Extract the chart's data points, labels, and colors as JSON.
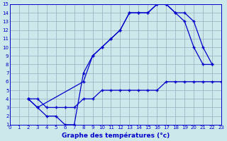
{
  "xlabel": "Graphe des températures (°c)",
  "bg_color": "#cce8ea",
  "line_color": "#0000cc",
  "grid_color": "#99aabb",
  "xlim": [
    0,
    23
  ],
  "ylim": [
    1,
    15
  ],
  "xticks": [
    0,
    1,
    2,
    3,
    4,
    5,
    6,
    7,
    8,
    9,
    10,
    11,
    12,
    13,
    14,
    15,
    16,
    17,
    18,
    19,
    20,
    21,
    22,
    23
  ],
  "yticks": [
    1,
    2,
    3,
    4,
    5,
    6,
    7,
    8,
    9,
    10,
    11,
    12,
    13,
    14,
    15
  ],
  "line1_x": [
    2,
    3,
    8,
    9,
    10,
    11,
    12,
    13,
    14,
    15,
    16,
    17,
    18,
    19,
    20,
    21,
    22
  ],
  "line1_y": [
    4,
    3,
    6,
    9,
    10,
    11,
    12,
    14,
    14,
    14,
    15,
    15,
    14,
    14,
    13,
    10,
    8
  ],
  "line2_x": [
    2,
    3,
    4,
    5,
    6,
    7,
    8,
    9,
    10,
    11,
    12,
    13,
    14,
    15,
    16,
    17,
    18,
    19,
    20,
    21,
    22
  ],
  "line2_y": [
    4,
    3,
    2,
    2,
    1,
    1,
    7,
    9,
    10,
    11,
    12,
    14,
    14,
    14,
    15,
    15,
    14,
    13,
    10,
    8,
    8
  ],
  "line3_x": [
    2,
    3,
    4,
    5,
    6,
    7,
    8,
    9,
    10,
    11,
    12,
    13,
    14,
    15,
    16,
    17,
    18,
    19,
    20,
    21,
    22,
    23
  ],
  "line3_y": [
    4,
    4,
    3,
    3,
    3,
    3,
    4,
    4,
    5,
    5,
    5,
    5,
    5,
    5,
    5,
    6,
    6,
    6,
    6,
    6,
    6,
    6
  ]
}
